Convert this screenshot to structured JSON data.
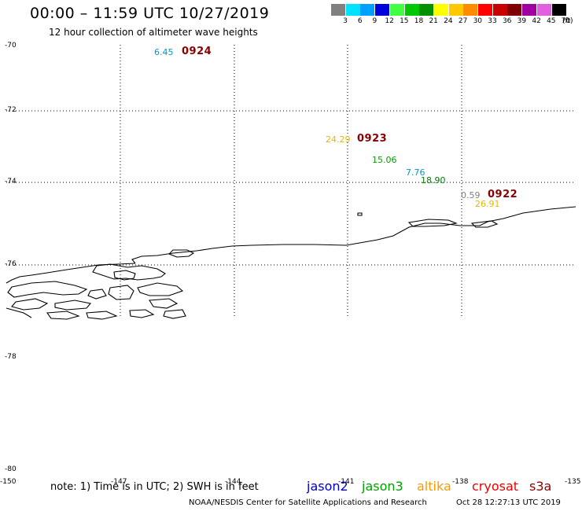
{
  "header": {
    "title": "00:00 – 11:59 UTC 10/27/2019",
    "subtitle": "12 hour collection of altimeter wave heights"
  },
  "color_scale": {
    "unit": "(ft)",
    "bins": [
      {
        "label": "3",
        "color": "#808080"
      },
      {
        "label": "6",
        "color": "#00e0ff"
      },
      {
        "label": "9",
        "color": "#00a0ff"
      },
      {
        "label": "12",
        "color": "#0000dd"
      },
      {
        "label": "15",
        "color": "#40ff40"
      },
      {
        "label": "18",
        "color": "#00c800"
      },
      {
        "label": "21",
        "color": "#009000"
      },
      {
        "label": "24",
        "color": "#ffff00"
      },
      {
        "label": "27",
        "color": "#ffc800"
      },
      {
        "label": "30",
        "color": "#ff8c00"
      },
      {
        "label": "33",
        "color": "#ff0000"
      },
      {
        "label": "36",
        "color": "#c80000"
      },
      {
        "label": "39",
        "color": "#800000"
      },
      {
        "label": "42",
        "color": "#a000a0"
      },
      {
        "label": "45",
        "color": "#e060e0"
      },
      {
        "label": "70",
        "color": "#000000"
      }
    ]
  },
  "axes": {
    "lat_labels": [
      "-70",
      "-72",
      "-74",
      "-76",
      "-78",
      "-78",
      "-80"
    ],
    "lon_labels": [
      "-150",
      "-147",
      "-144",
      "-141",
      "-138",
      "-135"
    ]
  },
  "observations": [
    {
      "value": "6.45",
      "color": "#0099cc"
    },
    {
      "value": "24.29",
      "color": "#e6b800"
    },
    {
      "value": "15.06",
      "color": "#00a000"
    },
    {
      "value": "7.76",
      "color": "#0099cc"
    },
    {
      "value": "18.90",
      "color": "#008000"
    },
    {
      "value": "0.59",
      "color": "#808080"
    },
    {
      "value": "26.91",
      "color": "#e6b800"
    }
  ],
  "timestamps": [
    "0924",
    "0923",
    "0922"
  ],
  "footer": {
    "note": "note: 1) Time is in UTC; 2) SWH is in feet",
    "satellites": [
      {
        "name": "jason2",
        "color": "#0000cc"
      },
      {
        "name": "jason3",
        "color": "#00a000"
      },
      {
        "name": "altika",
        "color": "#ff9900"
      },
      {
        "name": "cryosat",
        "color": "#ee0000"
      },
      {
        "name": "s3a",
        "color": "#8b0000"
      }
    ],
    "credit": "NOAA/NESDIS Center for Satellite Applications and Research",
    "generated": "Oct 28 12:27:13 UTC 2019"
  }
}
